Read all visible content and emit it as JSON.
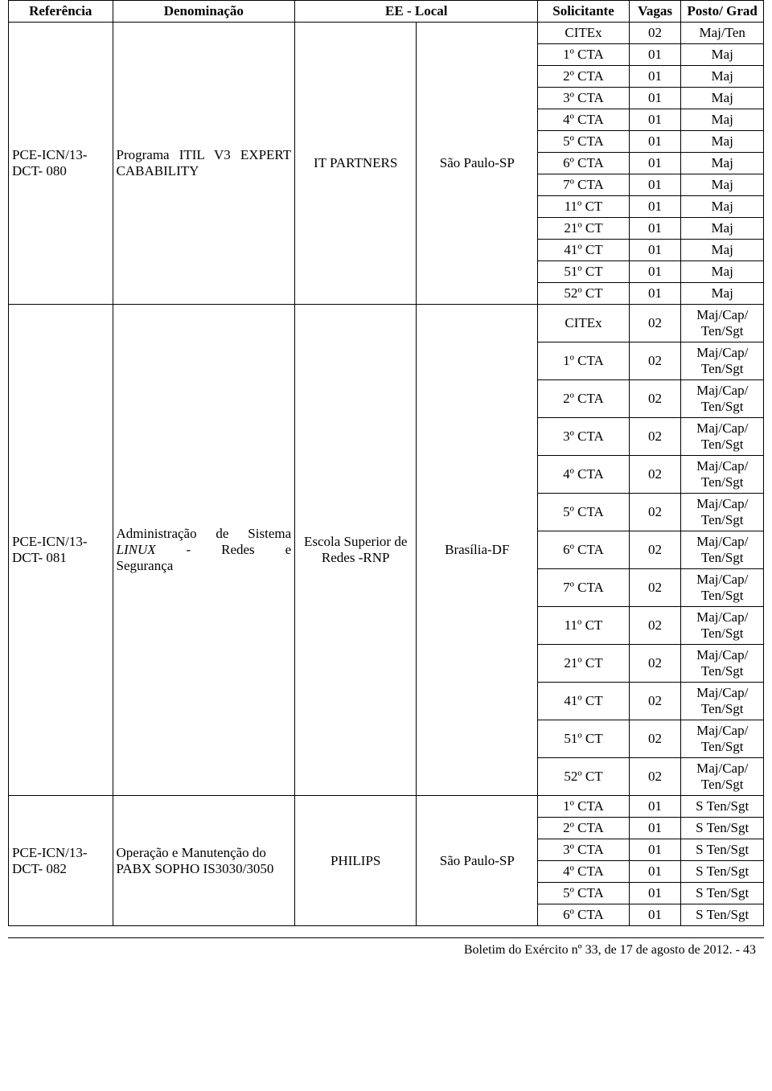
{
  "headers": {
    "referencia": "Referência",
    "denominacao": "Denominação",
    "ee_local": "EE - Local",
    "solicitante": "Solicitante",
    "vagas": "Vagas",
    "posto_grad": "Posto/ Grad"
  },
  "groups": [
    {
      "ref": "PCE-ICN/13-DCT- 080",
      "den_html": "Programa ITIL V3 EXPERT CABABILITY",
      "ee": "IT PARTNERS",
      "local": "São Paulo-SP",
      "rows": [
        {
          "sol": "CITEx",
          "vag": "02",
          "posto": "Maj/Ten"
        },
        {
          "sol": "1º CTA",
          "vag": "01",
          "posto": "Maj"
        },
        {
          "sol": "2º CTA",
          "vag": "01",
          "posto": "Maj"
        },
        {
          "sol": "3º CTA",
          "vag": "01",
          "posto": "Maj"
        },
        {
          "sol": "4º CTA",
          "vag": "01",
          "posto": "Maj"
        },
        {
          "sol": "5º CTA",
          "vag": "01",
          "posto": "Maj"
        },
        {
          "sol": "6º CTA",
          "vag": "01",
          "posto": "Maj"
        },
        {
          "sol": "7º CTA",
          "vag": "01",
          "posto": "Maj"
        },
        {
          "sol": "11º CT",
          "vag": "01",
          "posto": "Maj"
        },
        {
          "sol": "21º CT",
          "vag": "01",
          "posto": "Maj"
        },
        {
          "sol": "41º CT",
          "vag": "01",
          "posto": "Maj"
        },
        {
          "sol": "51º CT",
          "vag": "01",
          "posto": "Maj"
        },
        {
          "sol": "52º CT",
          "vag": "01",
          "posto": "Maj"
        }
      ]
    },
    {
      "ref": "PCE-ICN/13-DCT- 081",
      "den_lines": [
        "Administração de Sistema",
        "LINUX - Redes e"
      ],
      "den_last": "Segurança",
      "den_italic_word": "LINUX",
      "ee": "Escola Superior de Redes -RNP",
      "local": "Brasília-DF",
      "rows": [
        {
          "sol": "CITEx",
          "vag": "02",
          "posto": "Maj/Cap/ Ten/Sgt"
        },
        {
          "sol": "1º CTA",
          "vag": "02",
          "posto": "Maj/Cap/ Ten/Sgt"
        },
        {
          "sol": "2º CTA",
          "vag": "02",
          "posto": "Maj/Cap/ Ten/Sgt"
        },
        {
          "sol": "3º CTA",
          "vag": "02",
          "posto": "Maj/Cap/ Ten/Sgt"
        },
        {
          "sol": "4º CTA",
          "vag": "02",
          "posto": "Maj/Cap/ Ten/Sgt"
        },
        {
          "sol": "5º CTA",
          "vag": "02",
          "posto": "Maj/Cap/ Ten/Sgt"
        },
        {
          "sol": "6º CTA",
          "vag": "02",
          "posto": "Maj/Cap/ Ten/Sgt"
        },
        {
          "sol": "7º CTA",
          "vag": "02",
          "posto": "Maj/Cap/ Ten/Sgt"
        },
        {
          "sol": "11º CT",
          "vag": "02",
          "posto": "Maj/Cap/ Ten/Sgt"
        },
        {
          "sol": "21º CT",
          "vag": "02",
          "posto": "Maj/Cap/ Ten/Sgt"
        },
        {
          "sol": "41º CT",
          "vag": "02",
          "posto": "Maj/Cap/ Ten/Sgt"
        },
        {
          "sol": "51º CT",
          "vag": "02",
          "posto": "Maj/Cap/ Ten/Sgt"
        },
        {
          "sol": "52º CT",
          "vag": "02",
          "posto": "Maj/Cap/ Ten/Sgt"
        }
      ]
    },
    {
      "ref": "PCE-ICN/13-DCT- 082",
      "den_html": "Operação e Manutenção do PABX SOPHO IS3030/3050",
      "ee": "PHILIPS",
      "local": "São Paulo-SP",
      "rows": [
        {
          "sol": "1º CTA",
          "vag": "01",
          "posto": "S Ten/Sgt"
        },
        {
          "sol": "2º CTA",
          "vag": "01",
          "posto": "S Ten/Sgt"
        },
        {
          "sol": "3º CTA",
          "vag": "01",
          "posto": "S Ten/Sgt"
        },
        {
          "sol": "4º CTA",
          "vag": "01",
          "posto": "S Ten/Sgt"
        },
        {
          "sol": "5º CTA",
          "vag": "01",
          "posto": "S Ten/Sgt"
        },
        {
          "sol": "6º CTA",
          "vag": "01",
          "posto": "S Ten/Sgt"
        }
      ]
    }
  ],
  "footer": "Boletim do Exército nº 33, de 17 de agosto de 2012. - 43"
}
